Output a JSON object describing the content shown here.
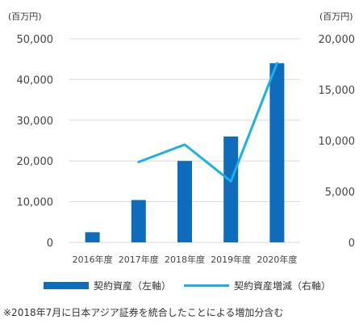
{
  "chart_data": {
    "type": "bar",
    "categories": [
      "2016年度",
      "2017年度",
      "2018年度",
      "2019年度",
      "2020年度"
    ],
    "series": [
      {
        "name": "契約資産（左軸）",
        "type": "bar",
        "axis": "left",
        "values": [
          2500,
          10400,
          20000,
          26000,
          44000
        ],
        "color": "#0F6CBD"
      },
      {
        "name": "契約資産増減（右軸）",
        "type": "line",
        "axis": "right",
        "values": [
          null,
          7900,
          9600,
          6000,
          17600
        ],
        "color": "#1CB0E8"
      }
    ],
    "left_axis": {
      "unit_label": "(百万円)",
      "ylim": [
        0,
        50000
      ],
      "ticks": [
        "0",
        "10,000",
        "20,000",
        "30,000",
        "40,000",
        "50,000"
      ]
    },
    "right_axis": {
      "unit_label": "(百万円)",
      "ylim": [
        0,
        20000
      ],
      "ticks": [
        "0",
        "5,000",
        "10,000",
        "15,000",
        "20,000"
      ]
    },
    "grid": true,
    "legend_position": "bottom",
    "footnote": "※2018年7月に日本アジア証券を統合したことによる増加分含む"
  }
}
